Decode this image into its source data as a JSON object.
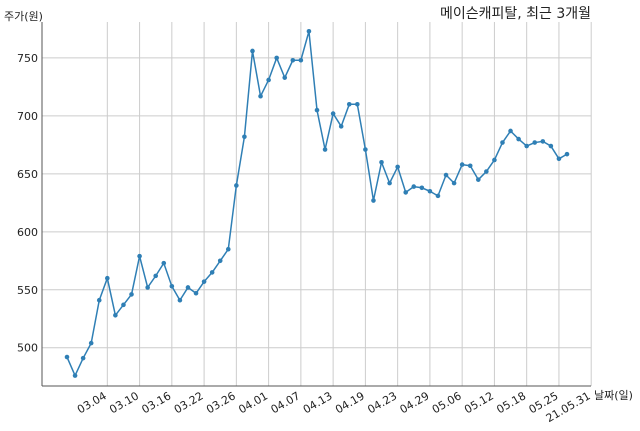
{
  "chart_data": {
    "type": "line",
    "title": "메이슨캐피탈, 최근 3개월",
    "xlabel": "날짜(일)",
    "ylabel": "주가(원)",
    "ylim": [
      467,
      781
    ],
    "grid": true,
    "legend": "none",
    "color": "#2f7fb5",
    "yticks": [
      500,
      550,
      600,
      650,
      700,
      750
    ],
    "xticks": [
      {
        "label": "03.04",
        "index": 5
      },
      {
        "label": "03.10",
        "index": 9
      },
      {
        "label": "03.16",
        "index": 13
      },
      {
        "label": "03.22",
        "index": 17
      },
      {
        "label": "03.26",
        "index": 21
      },
      {
        "label": "04.01",
        "index": 25
      },
      {
        "label": "04.07",
        "index": 29
      },
      {
        "label": "04.13",
        "index": 33
      },
      {
        "label": "04.19",
        "index": 37
      },
      {
        "label": "04.23",
        "index": 41
      },
      {
        "label": "04.29",
        "index": 45
      },
      {
        "label": "05.06",
        "index": 49
      },
      {
        "label": "05.12",
        "index": 53
      },
      {
        "label": "05.18",
        "index": 57
      },
      {
        "label": "05.25",
        "index": 61
      },
      {
        "label": "21.05.31",
        "index": 65
      }
    ],
    "values": [
      492,
      476,
      491,
      504,
      541,
      560,
      528,
      537,
      546,
      579,
      552,
      562,
      573,
      553,
      541,
      552,
      547,
      557,
      565,
      575,
      585,
      640,
      682,
      756,
      717,
      731,
      750,
      733,
      748,
      748,
      773,
      705,
      671,
      702,
      691,
      710,
      710,
      671,
      627,
      660,
      642,
      656,
      634,
      639,
      638,
      635,
      631,
      649,
      642,
      658,
      657,
      645,
      652,
      662,
      677,
      687,
      680,
      674,
      677,
      678,
      674,
      663,
      667
    ]
  }
}
